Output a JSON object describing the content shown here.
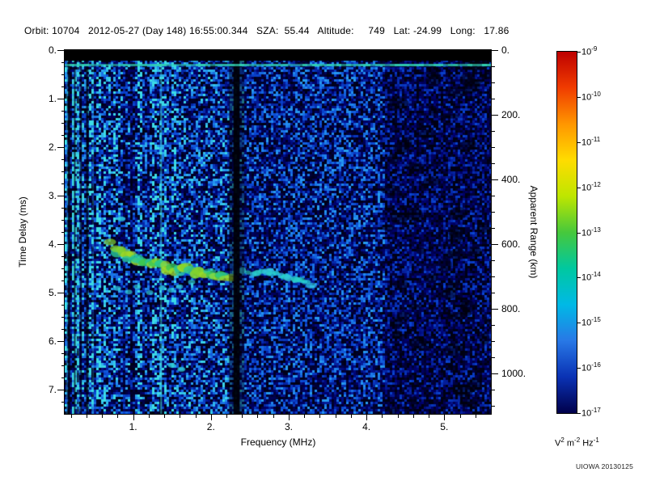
{
  "header": {
    "text": "Orbit: 10704   2012-05-27 (Day 148) 16:55:00.344   SZA:  55.44   Altitude:     749   Lat: -24.99   Long:   17.86"
  },
  "footer": {
    "credit": "UIOWA 20130125"
  },
  "chart_data": {
    "type": "heatmap",
    "title": "",
    "xlabel": "Frequency (MHz)",
    "ylabel_left": "Time Delay (ms)",
    "ylabel_right": "Apparent Range (km)",
    "x_range": [
      0.12,
      5.6
    ],
    "y_range": [
      0,
      7.5
    ],
    "range_km_per_ms": 150,
    "x_ticks": [
      {
        "v": 1,
        "label": "1."
      },
      {
        "v": 2,
        "label": "2."
      },
      {
        "v": 3,
        "label": "3."
      },
      {
        "v": 4,
        "label": "4."
      },
      {
        "v": 5,
        "label": "5."
      }
    ],
    "y_ticks_left": [
      {
        "v": 0,
        "label": "0."
      },
      {
        "v": 1,
        "label": "1."
      },
      {
        "v": 2,
        "label": "2."
      },
      {
        "v": 3,
        "label": "3."
      },
      {
        "v": 4,
        "label": "4."
      },
      {
        "v": 5,
        "label": "5."
      },
      {
        "v": 6,
        "label": "6."
      },
      {
        "v": 7,
        "label": "7."
      }
    ],
    "y_ticks_right": [
      {
        "km": 0,
        "label": "0."
      },
      {
        "km": 200,
        "label": "200."
      },
      {
        "km": 400,
        "label": "400."
      },
      {
        "km": 600,
        "label": "600."
      },
      {
        "km": 800,
        "label": "800."
      },
      {
        "km": 1000,
        "label": "1000."
      }
    ],
    "colorbar": {
      "exponents": [
        "-9",
        "-10",
        "-11",
        "-12",
        "-13",
        "-14",
        "-15",
        "-16",
        "-17"
      ],
      "colors": [
        "#be0000",
        "#f03c00",
        "#ff9600",
        "#ffdc00",
        "#bee600",
        "#46c83c",
        "#00c8a0",
        "#00b9e6",
        "#2878e6",
        "#0a32b4",
        "#00004b"
      ],
      "unit_parts": [
        {
          "t": "V",
          "s": "2"
        },
        {
          "t": "m",
          "s": "-2"
        },
        {
          "t": "Hz",
          "s": "-1"
        }
      ]
    },
    "noise_palette": [
      "#000014",
      "#00006e",
      "#0a46d2",
      "#2390f0",
      "#3cdce6"
    ],
    "features": {
      "top_black_bar_ms": 0.22,
      "surface_line_ms": 0.3,
      "dark_bands_mhz": [
        [
          0.175,
          0.03,
          0.8
        ],
        [
          0.25,
          0.02,
          0.7
        ],
        [
          0.33,
          0.02,
          0.7
        ],
        [
          0.41,
          0.03,
          0.75
        ],
        [
          2.33,
          0.2,
          0.45
        ],
        [
          2.33,
          0.08,
          0.92
        ]
      ],
      "bright_lines_mhz": [
        [
          0.145,
          0.018,
          0.5
        ],
        [
          0.29,
          0.014,
          0.45
        ],
        [
          0.48,
          0.012,
          0.35
        ],
        [
          1.36,
          0.022,
          0.8
        ]
      ],
      "quiet_region_start_mhz": 4.25,
      "trace_main": [
        [
          0.72,
          3.95
        ],
        [
          0.8,
          4.12
        ],
        [
          0.92,
          4.25
        ],
        [
          1.05,
          4.33
        ],
        [
          1.25,
          4.4
        ],
        [
          1.45,
          4.48
        ],
        [
          1.65,
          4.55
        ],
        [
          1.85,
          4.6
        ],
        [
          2.05,
          4.65
        ],
        [
          2.25,
          4.68
        ]
      ],
      "trace_scatter": [
        [
          0.82,
          4.9
        ],
        [
          0.95,
          5.0
        ],
        [
          1.08,
          4.88
        ],
        [
          1.2,
          4.97
        ],
        [
          1.35,
          4.9
        ],
        [
          1.5,
          4.97
        ],
        [
          1.62,
          4.86
        ],
        [
          1.78,
          4.8
        ]
      ],
      "trace_second": [
        [
          2.42,
          4.58
        ],
        [
          2.6,
          4.58
        ],
        [
          2.78,
          4.6
        ],
        [
          2.96,
          4.65
        ],
        [
          3.12,
          4.72
        ],
        [
          3.28,
          4.82
        ]
      ],
      "extra_blobs": [
        [
          0.85,
          3.48
        ],
        [
          1.5,
          6.5
        ],
        [
          1.62,
          6.58
        ]
      ],
      "trace_colors": {
        "main": [
          "#3cc850",
          "#82d22d",
          "#a0dc28",
          "#28c896"
        ],
        "second": [
          "#28d2c8",
          "#32c8dc"
        ],
        "scatter": "#2dc8d2"
      }
    }
  }
}
